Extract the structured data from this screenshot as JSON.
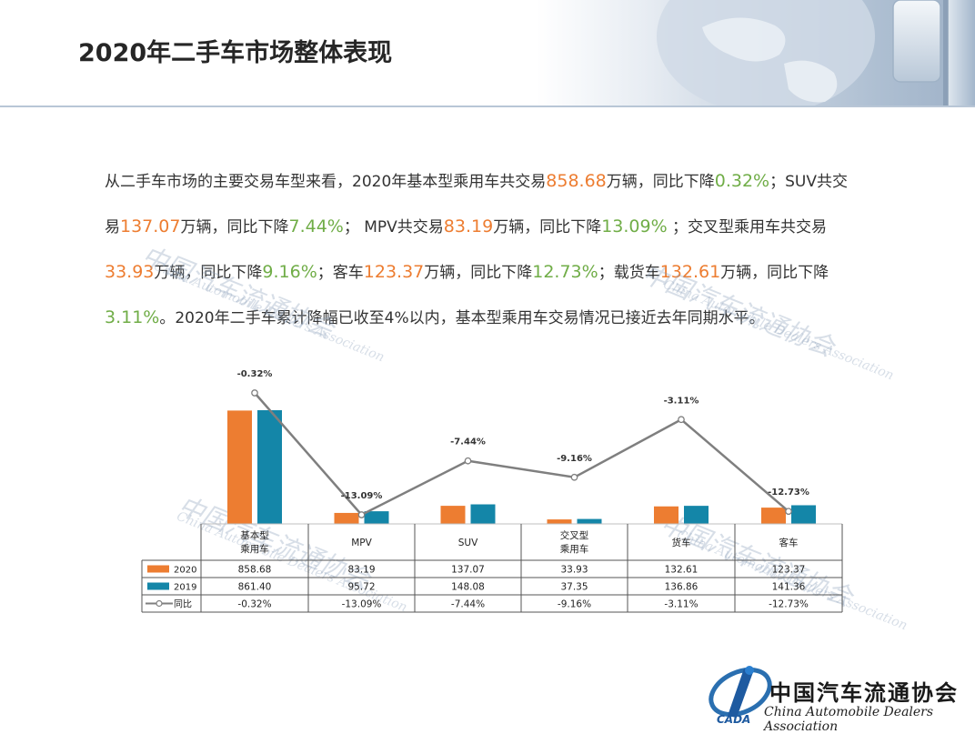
{
  "page": {
    "title": "2020年二手车市场整体表现",
    "paragraph": [
      {
        "t": "从二手车市场的主要交易车型来看，2020年基本型乘用车共交易",
        "c": ""
      },
      {
        "t": "858.68",
        "c": "o"
      },
      {
        "t": "万辆，同比下降",
        "c": ""
      },
      {
        "t": "0.32%",
        "c": "g"
      },
      {
        "t": "；SUV共交易",
        "c": ""
      },
      {
        "t": "137.07",
        "c": "o"
      },
      {
        "t": "万辆，同比下降",
        "c": ""
      },
      {
        "t": "7.44%",
        "c": "g"
      },
      {
        "t": "； MPV共交易",
        "c": ""
      },
      {
        "t": "83.19",
        "c": "o"
      },
      {
        "t": "万辆，同比下降",
        "c": ""
      },
      {
        "t": "13.09%",
        "c": "g"
      },
      {
        "t": " ；交叉型乘用车共交易",
        "c": ""
      },
      {
        "t": "33.93",
        "c": "o"
      },
      {
        "t": "万辆，同比下降",
        "c": ""
      },
      {
        "t": "9.16%",
        "c": "g"
      },
      {
        "t": "；客车",
        "c": ""
      },
      {
        "t": "123.37",
        "c": "o"
      },
      {
        "t": "万辆，同比下降",
        "c": ""
      },
      {
        "t": "12.73%",
        "c": "g"
      },
      {
        "t": "；载货车",
        "c": ""
      },
      {
        "t": "132.61",
        "c": "o"
      },
      {
        "t": "万辆，同比下降",
        "c": ""
      },
      {
        "t": "3.11%",
        "c": "g"
      },
      {
        "t": "。2020年二手车累计降幅已收至4%以内，基本型乘用车交易情况已接近去年同期水平。",
        "c": ""
      }
    ],
    "colors": {
      "orange": "#ed7d31",
      "green": "#70ad47",
      "teal": "#1486a8",
      "line": "#7f7f7f"
    },
    "logo": {
      "cn": "中国汽车流通协会",
      "en": "China Automobile Dealers Association",
      "mark": "CADA"
    },
    "watermark": {
      "cn": "中国汽车流通协会",
      "en": "China Automobile Dealers Association",
      "mark": "CADA"
    }
  },
  "chart_data": {
    "type": "bar",
    "categories": [
      "基本型\n乘用车",
      "MPV",
      "SUV",
      "交叉型\n乘用车",
      "货车",
      "客车"
    ],
    "series": [
      {
        "name": "2020",
        "type": "bar",
        "color": "#ed7d31",
        "values": [
          858.68,
          83.19,
          137.07,
          33.93,
          132.61,
          123.37
        ],
        "labels": [
          "858.68",
          "83.19",
          "137.07",
          "33.93",
          "132.61",
          "123.37"
        ]
      },
      {
        "name": "2019",
        "type": "bar",
        "color": "#1486a8",
        "values": [
          861.4,
          95.72,
          148.08,
          37.35,
          136.86,
          141.36
        ],
        "labels": [
          "861.40",
          "95.72",
          "148.08",
          "37.35",
          "136.86",
          "141.36"
        ]
      },
      {
        "name": "同比",
        "type": "line",
        "color": "#7f7f7f",
        "values": [
          -0.32,
          -13.09,
          -7.44,
          -9.16,
          -3.11,
          -12.73
        ],
        "labels": [
          "-0.32%",
          "-13.09%",
          "-7.44%",
          "-9.16%",
          "-3.11%",
          "-12.73%"
        ]
      }
    ],
    "data_table": true,
    "axes": "hidden",
    "legend": "data-table"
  }
}
